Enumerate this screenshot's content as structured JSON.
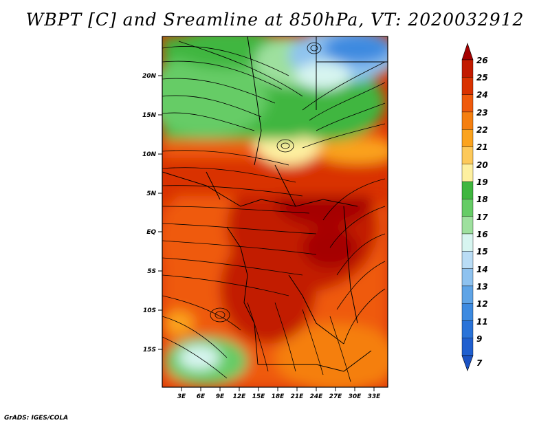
{
  "title": "WBPT [C] and Sreamline at 850hPa, VT: 2020032912",
  "footer": "GrADS: IGES/COLA",
  "map": {
    "lat_labels": [
      "20N",
      "15N",
      "10N",
      "5N",
      "EQ",
      "5S",
      "10S",
      "15S"
    ],
    "lon_labels": [
      "3E",
      "6E",
      "9E",
      "12E",
      "15E",
      "18E",
      "21E",
      "24E",
      "27E",
      "30E",
      "33E"
    ],
    "lon_range": [
      0,
      35
    ],
    "lat_range": [
      -20,
      24
    ]
  },
  "legend": {
    "labels": [
      "26",
      "25",
      "24",
      "23",
      "22",
      "21",
      "20",
      "19",
      "18",
      "17",
      "16",
      "15",
      "14",
      "13",
      "12",
      "11",
      "9",
      "7"
    ],
    "colors": [
      "#a50000",
      "#c21a00",
      "#d93200",
      "#ef5a0c",
      "#f57f0f",
      "#fba31e",
      "#fdc95a",
      "#fef0a0",
      "#3fb63f",
      "#66cc66",
      "#9ee09e",
      "#d7f5f0",
      "#b9dcf5",
      "#8ec2ef",
      "#5fa4e6",
      "#3d8ae0",
      "#2a73d8",
      "#1f5fcf",
      "#1b52c3"
    ]
  }
}
